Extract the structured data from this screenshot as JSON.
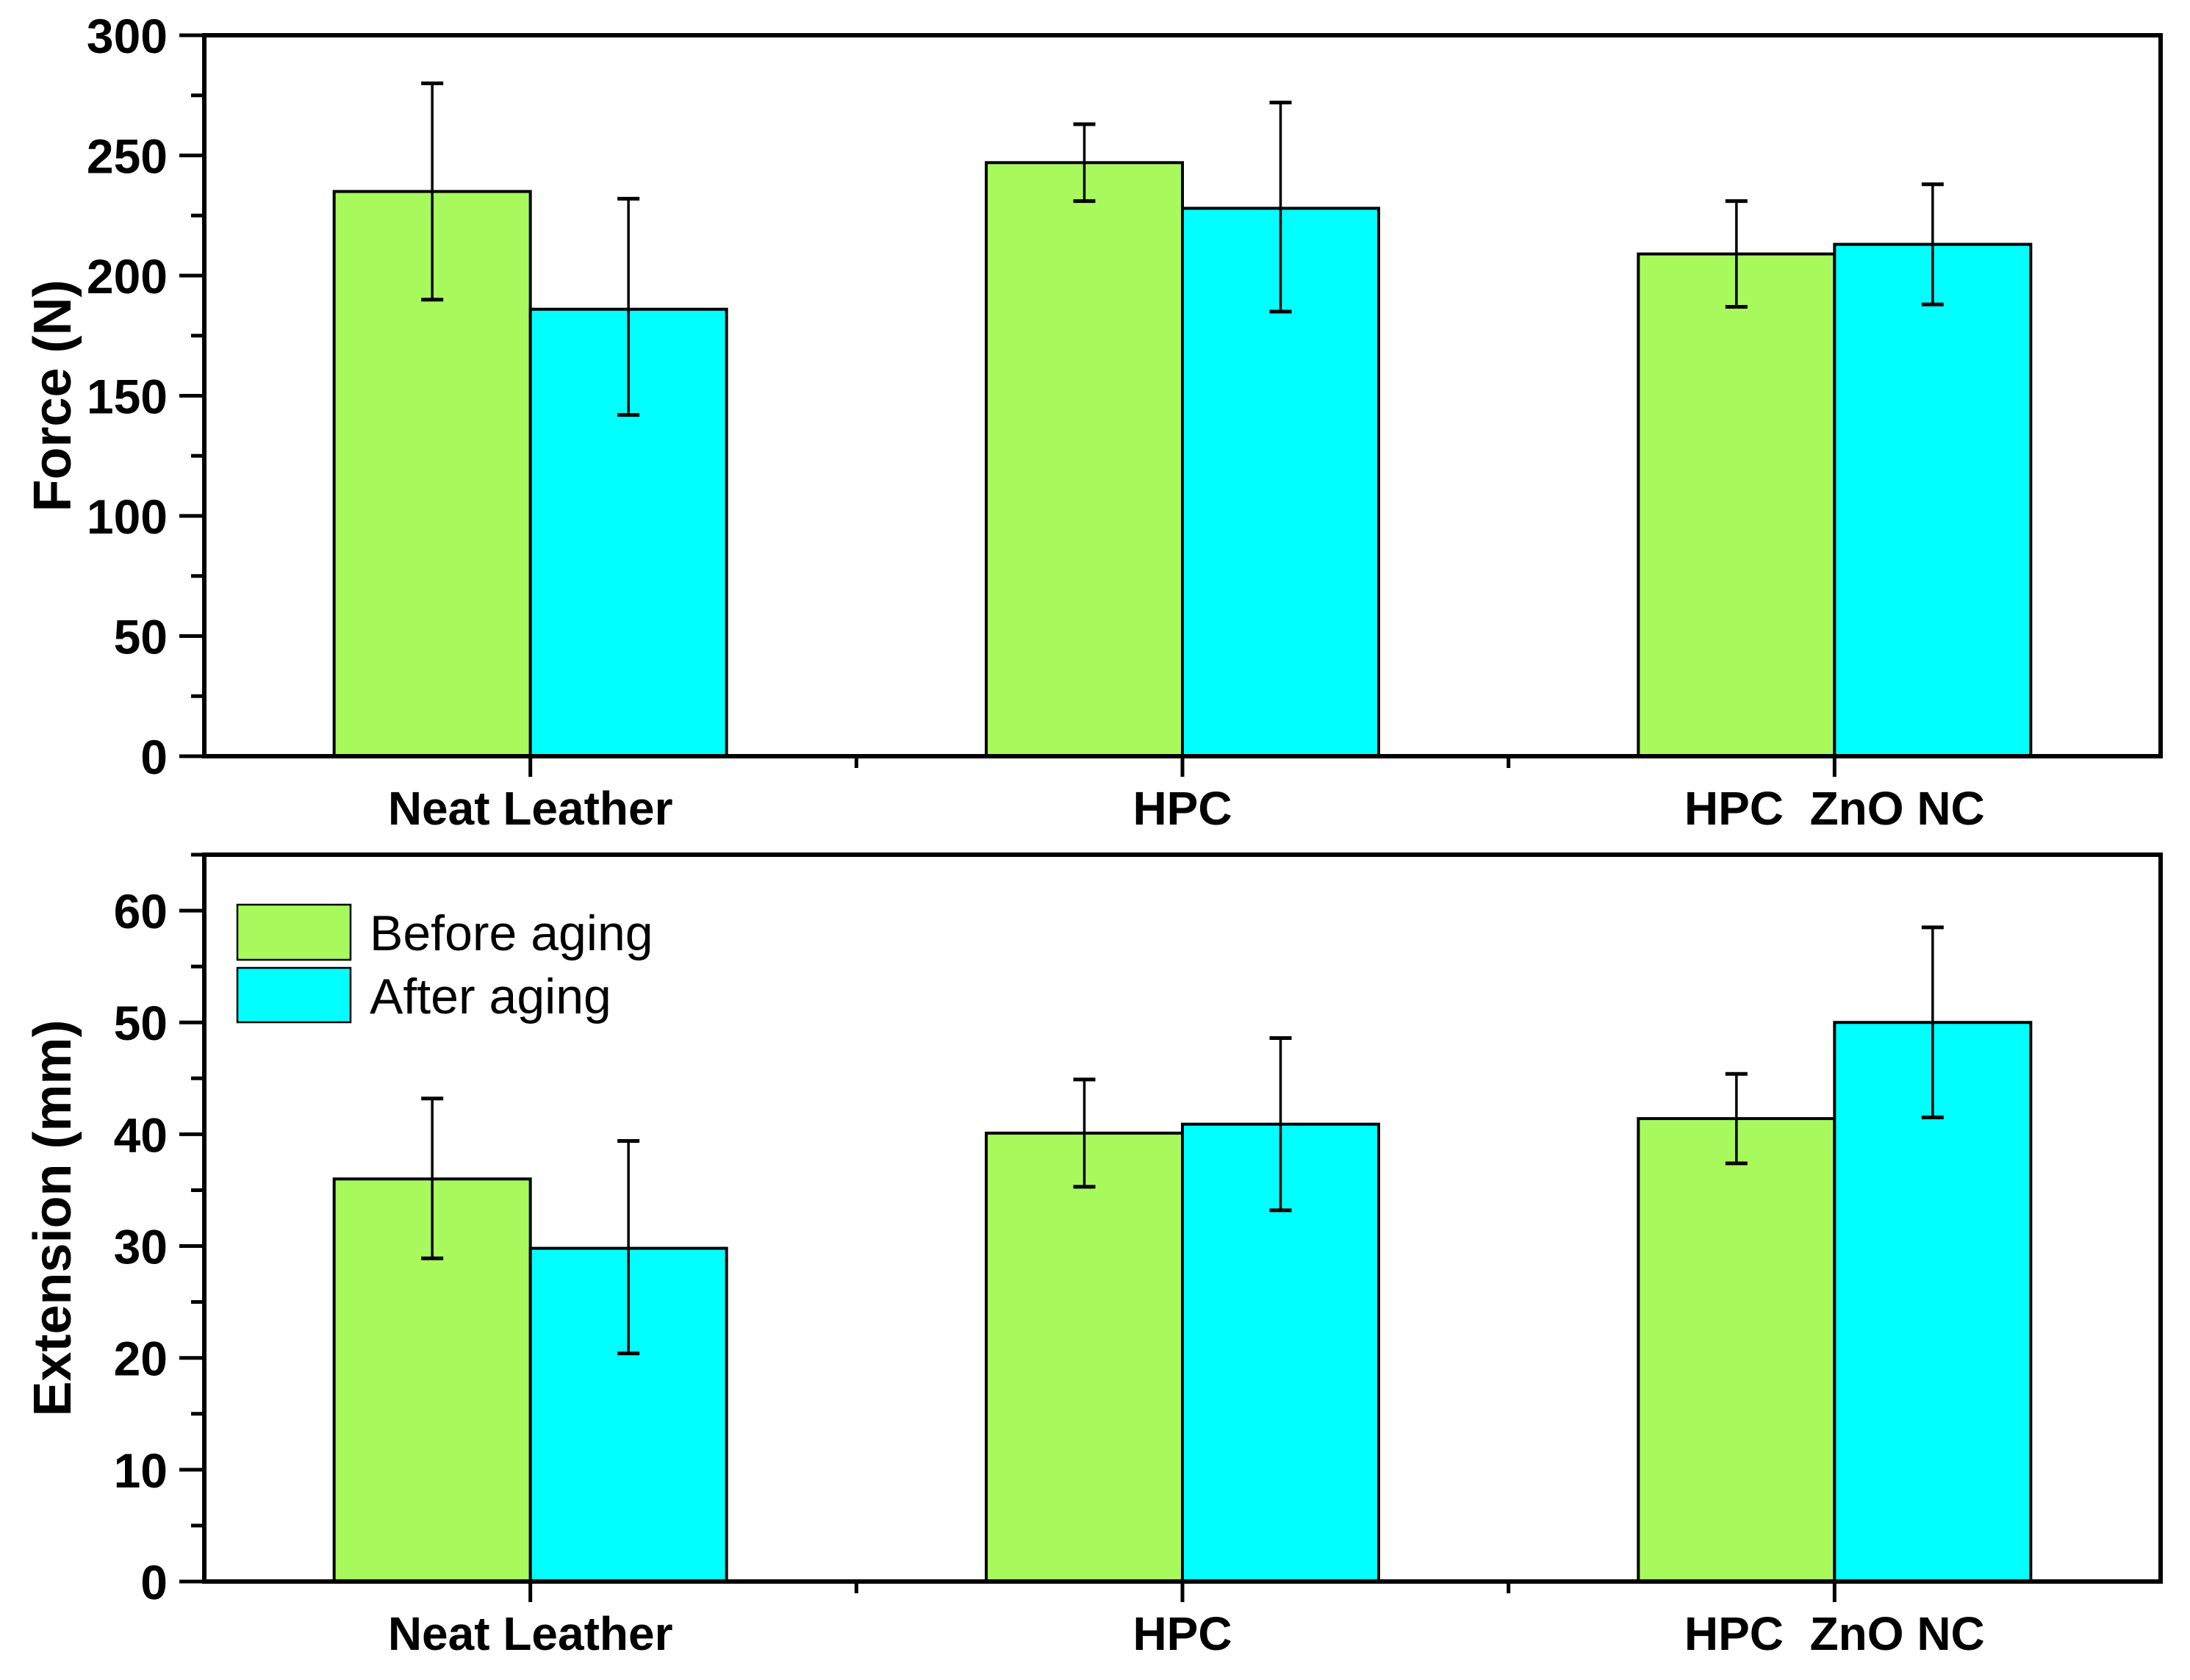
{
  "figure": {
    "background": "#FFFFFF",
    "axis_color": "#000000",
    "bar_edge_color": "#000000"
  },
  "chart_data": [
    {
      "type": "bar",
      "title": "",
      "xlabel": "",
      "ylabel": "Force (N)",
      "ylim": [
        0,
        300
      ],
      "yticks": [
        0,
        50,
        100,
        150,
        200,
        250,
        300
      ],
      "ytick_labels": [
        "0",
        "50",
        "100",
        "150",
        "200",
        "250",
        "300"
      ],
      "ytick_minor_step": 25,
      "grid": "off",
      "categories": [
        "Neat Leather",
        "HPC",
        "HPC  ZnO NC"
      ],
      "series": [
        {
          "name": "Before aging",
          "color": "#A8FA5C",
          "values": [
            235,
            247,
            209
          ],
          "err_lo": [
            190,
            231,
            187
          ],
          "err_hi": [
            280,
            263,
            231
          ]
        },
        {
          "name": "After aging",
          "color": "#00FFFF",
          "values": [
            186,
            228,
            213
          ],
          "err_lo": [
            142,
            185,
            188
          ],
          "err_hi": [
            232,
            272,
            238
          ]
        }
      ],
      "legend": {
        "visible": false,
        "position": "none",
        "entries": []
      }
    },
    {
      "type": "bar",
      "title": "",
      "xlabel": "",
      "ylabel": "Extension (mm)",
      "ylim": [
        0,
        65
      ],
      "yticks": [
        0,
        10,
        20,
        30,
        40,
        50,
        60
      ],
      "ytick_labels": [
        "0",
        "10",
        "20",
        "30",
        "40",
        "50",
        "60"
      ],
      "ytick_minor_step": 5,
      "grid": "off",
      "categories": [
        "Neat Leather",
        "HPC",
        "HPC  ZnO NC"
      ],
      "series": [
        {
          "name": "Before aging",
          "color": "#A8FA5C",
          "values": [
            36.0,
            40.1,
            41.4
          ],
          "err_lo": [
            28.9,
            35.3,
            37.4
          ],
          "err_hi": [
            43.2,
            44.9,
            45.4
          ]
        },
        {
          "name": "After aging",
          "color": "#00FFFF",
          "values": [
            29.8,
            40.9,
            50.0
          ],
          "err_lo": [
            20.4,
            33.2,
            41.5
          ],
          "err_hi": [
            39.4,
            48.6,
            58.5
          ]
        }
      ],
      "legend": {
        "visible": true,
        "position": "top-left",
        "entries": [
          "Before aging",
          "After aging"
        ]
      }
    }
  ]
}
